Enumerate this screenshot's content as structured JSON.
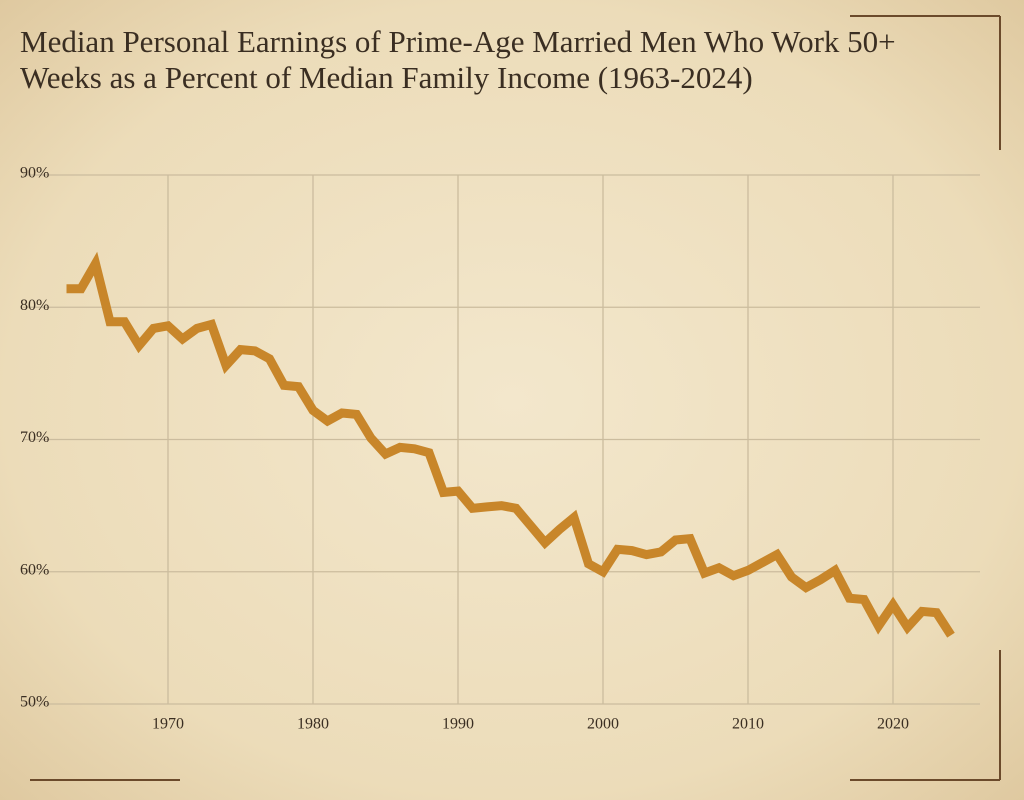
{
  "chart_data": {
    "type": "line",
    "title": "Median Personal Earnings of Prime-Age Married Men Who Work 50+ Weeks as a Percent of Median Family Income (1963-2024)",
    "x": [
      1963,
      1964,
      1965,
      1966,
      1967,
      1968,
      1969,
      1970,
      1971,
      1972,
      1973,
      1974,
      1975,
      1976,
      1977,
      1978,
      1979,
      1980,
      1981,
      1982,
      1983,
      1984,
      1985,
      1986,
      1987,
      1988,
      1989,
      1990,
      1991,
      1992,
      1993,
      1994,
      1995,
      1996,
      1997,
      1998,
      1999,
      2000,
      2001,
      2002,
      2003,
      2004,
      2005,
      2006,
      2007,
      2008,
      2009,
      2010,
      2011,
      2012,
      2013,
      2014,
      2015,
      2016,
      2017,
      2018,
      2019,
      2020,
      2021,
      2022,
      2023,
      2024
    ],
    "values": [
      81.4,
      81.4,
      83.3,
      78.9,
      78.9,
      77.1,
      78.4,
      78.6,
      77.6,
      78.4,
      78.7,
      75.6,
      76.8,
      76.7,
      76.1,
      74.1,
      74.0,
      72.2,
      71.4,
      72.0,
      71.9,
      70.1,
      68.9,
      69.4,
      69.3,
      69.0,
      66.0,
      66.1,
      64.8,
      64.9,
      65.0,
      64.8,
      63.5,
      62.2,
      63.2,
      64.1,
      60.6,
      60.0,
      61.7,
      61.6,
      61.3,
      61.5,
      62.4,
      62.5,
      59.9,
      60.3,
      59.7,
      60.1,
      60.7,
      61.3,
      59.6,
      58.8,
      59.4,
      60.1,
      58.0,
      57.9,
      55.9,
      57.5,
      55.8,
      57.0,
      56.9,
      55.2
    ],
    "color": "#c8862a",
    "xlim": [
      1960,
      2026
    ],
    "xticks": [
      1970,
      1980,
      1990,
      2000,
      2010,
      2020
    ],
    "ylim": [
      50,
      90
    ],
    "yticks": [
      {
        "value": 50,
        "label": "50%"
      },
      {
        "value": 60,
        "label": "60%"
      },
      {
        "value": 70,
        "label": "70%"
      },
      {
        "value": 80,
        "label": "80%"
      },
      {
        "value": 90,
        "label": "90%"
      }
    ],
    "grid": true
  }
}
